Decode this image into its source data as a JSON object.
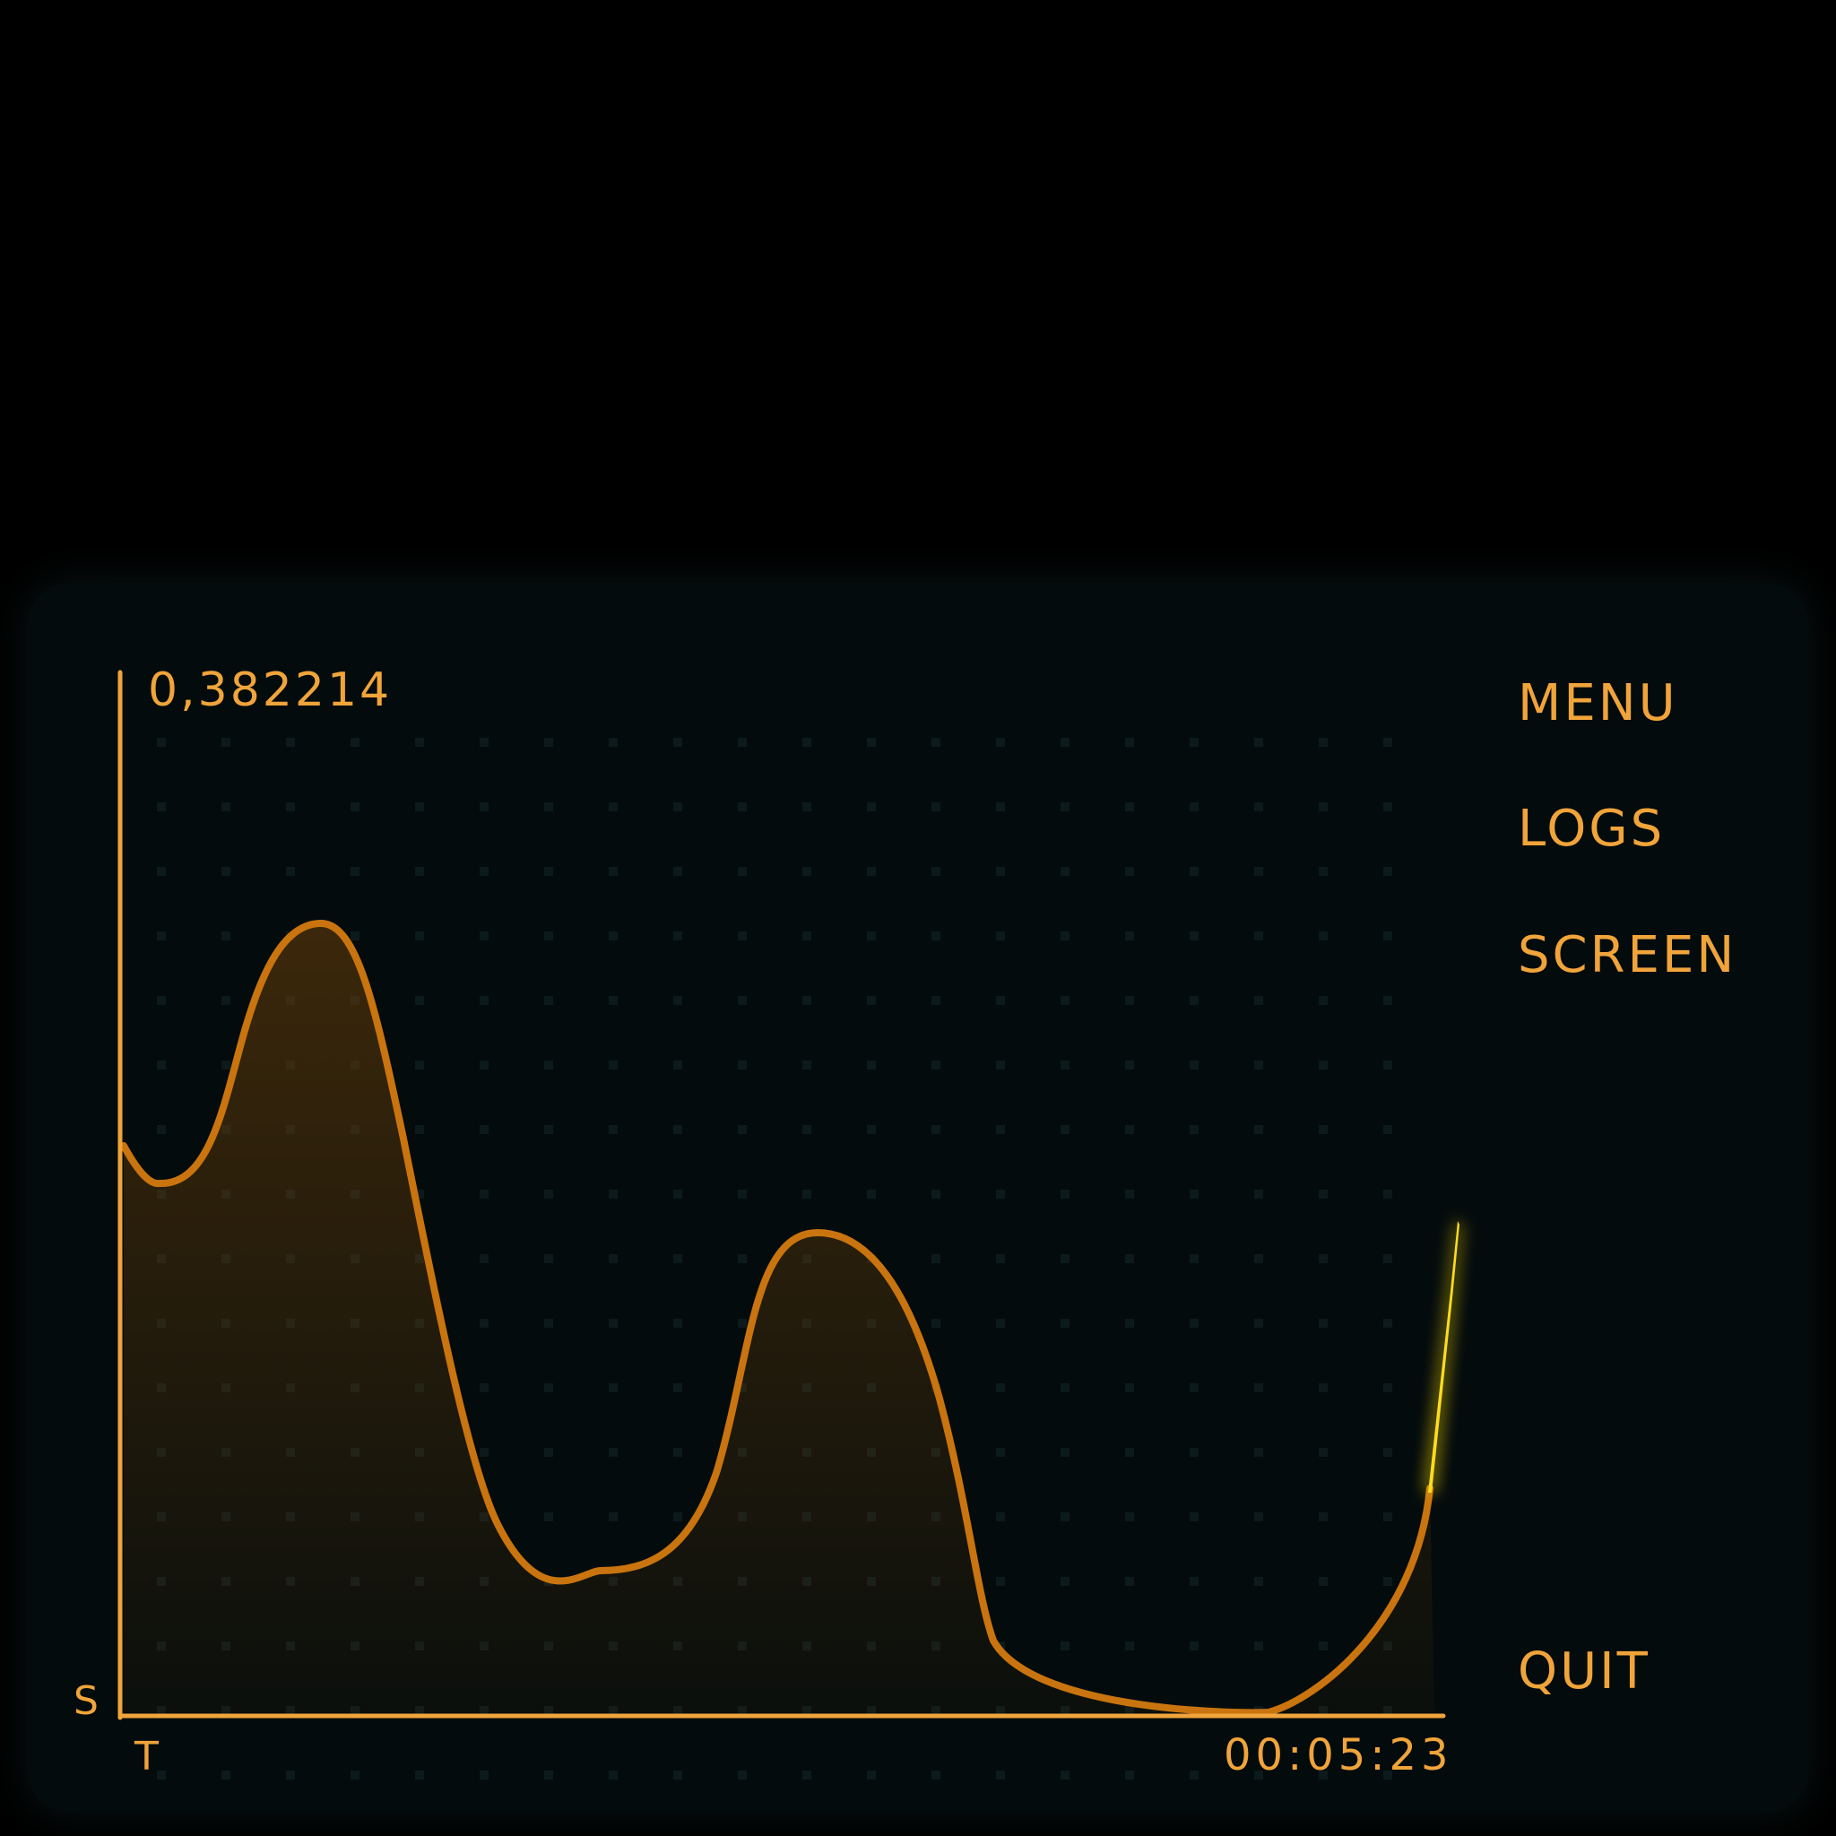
{
  "colors": {
    "background": "#000000",
    "panel": "#030b0c",
    "accent": "#f0a43a",
    "curve": "#c9740f",
    "highlight": "#ffdc1e"
  },
  "readout": {
    "value": "0,382214"
  },
  "menu": {
    "items": [
      "MENU",
      "LOGS",
      "SCREEN"
    ],
    "quit": "QUIT"
  },
  "axes": {
    "y_label": "S",
    "x_label": "T"
  },
  "timer": {
    "value": "00:05:23"
  },
  "icons": {
    "spike": "glowing-spike-icon"
  }
}
